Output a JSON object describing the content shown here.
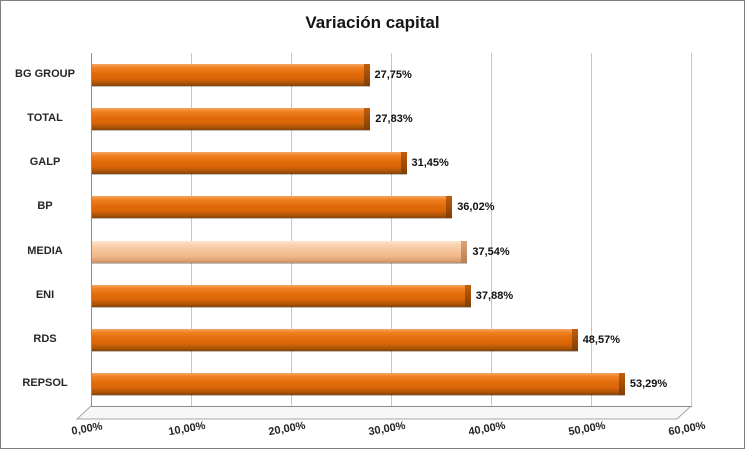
{
  "title": "Variación capital",
  "chart_data": {
    "type": "bar",
    "orientation": "horizontal",
    "title": "Variación capital",
    "categories": [
      "BG GROUP",
      "TOTAL",
      "GALP",
      "BP",
      "MEDIA",
      "ENI",
      "RDS",
      "REPSOL"
    ],
    "values": [
      27.75,
      27.83,
      31.45,
      36.02,
      37.54,
      37.88,
      48.57,
      53.29
    ],
    "value_labels": [
      "27,75%",
      "27,83%",
      "31,45%",
      "36,02%",
      "37,54%",
      "37,88%",
      "48,57%",
      "53,29%"
    ],
    "highlight_index": 4,
    "highlight_category": "MEDIA",
    "xlabel": "",
    "ylabel": "",
    "xlim": [
      0,
      60
    ],
    "x_ticks": [
      "0,00%",
      "10,00%",
      "20,00%",
      "30,00%",
      "40,00%",
      "50,00%",
      "60,00%"
    ],
    "grid": true,
    "legend": false,
    "style": "3d-horizontal-bar",
    "bar_color": "#e36c09",
    "bar_highlight_color": "#f6c49a",
    "gridline_color": "#c6c6c6",
    "axis_color": "#8c8c8c",
    "title_color": "#151515",
    "label_color": "#262626"
  }
}
